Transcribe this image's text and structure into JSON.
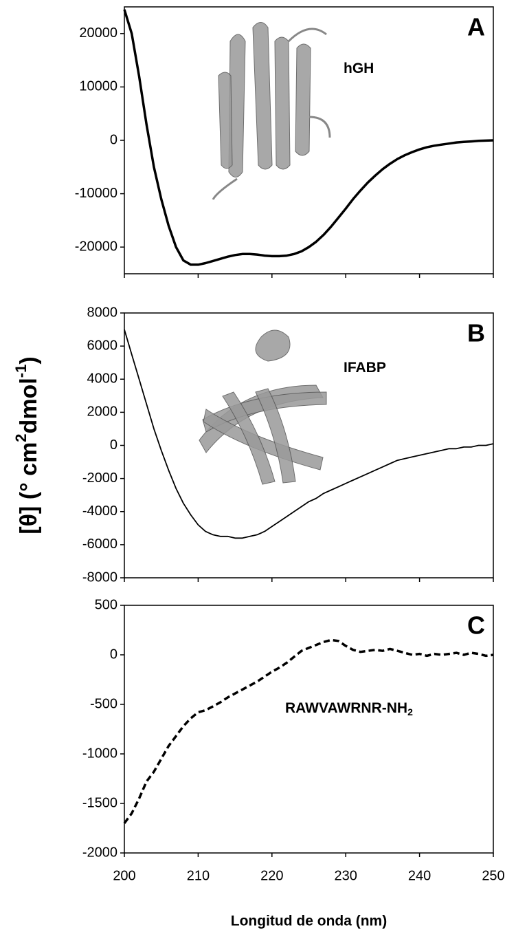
{
  "chart_data": [
    {
      "type": "line",
      "panel": "A",
      "annotation": [
        "hGH"
      ],
      "line_style": "solid",
      "xtick_labels": false,
      "xlim": [
        200,
        250
      ],
      "xticks": [
        200,
        210,
        220,
        230,
        240,
        250
      ],
      "ylim": [
        -25000,
        25000
      ],
      "yticks": [
        -20000,
        -10000,
        0,
        10000,
        20000
      ],
      "x": [
        200,
        201,
        202,
        203,
        204,
        205,
        206,
        207,
        208,
        209,
        210,
        211,
        212,
        213,
        214,
        215,
        216,
        217,
        218,
        219,
        220,
        221,
        222,
        223,
        224,
        225,
        226,
        227,
        228,
        229,
        230,
        231,
        232,
        233,
        234,
        235,
        236,
        237,
        238,
        239,
        240,
        241,
        242,
        243,
        244,
        245,
        246,
        247,
        248,
        249,
        250
      ],
      "series": [
        {
          "color": "#000000",
          "values": [
            24500,
            20000,
            12000,
            3000,
            -5000,
            -11000,
            -16000,
            -20000,
            -22500,
            -23300,
            -23300,
            -23000,
            -22600,
            -22200,
            -21800,
            -21500,
            -21300,
            -21300,
            -21400,
            -21600,
            -21700,
            -21700,
            -21600,
            -21300,
            -20800,
            -20000,
            -19000,
            -17700,
            -16200,
            -14500,
            -12800,
            -11000,
            -9400,
            -7900,
            -6600,
            -5400,
            -4400,
            -3500,
            -2800,
            -2200,
            -1700,
            -1300,
            -1000,
            -800,
            -600,
            -400,
            -300,
            -200,
            -100,
            -50,
            0
          ]
        }
      ]
    },
    {
      "type": "line",
      "panel": "B",
      "annotation": [
        "IFABP"
      ],
      "line_style": "solid",
      "xtick_labels": false,
      "ylabel": [
        "[θ] (° cm",
        "2",
        "dmol",
        "-1",
        ")"
      ],
      "xlim": [
        200,
        250
      ],
      "xticks": [
        200,
        210,
        220,
        230,
        240,
        250
      ],
      "ylim": [
        -8000,
        8000
      ],
      "yticks": [
        -8000,
        -6000,
        -4000,
        -2000,
        0,
        2000,
        4000,
        6000,
        8000
      ],
      "x": [
        200,
        201,
        202,
        203,
        204,
        205,
        206,
        207,
        208,
        209,
        210,
        211,
        212,
        213,
        214,
        215,
        216,
        217,
        218,
        219,
        220,
        221,
        222,
        223,
        224,
        225,
        226,
        227,
        228,
        229,
        230,
        231,
        232,
        233,
        234,
        235,
        236,
        237,
        238,
        239,
        240,
        241,
        242,
        243,
        244,
        245,
        246,
        247,
        248,
        249,
        250
      ],
      "series": [
        {
          "color": "#000000",
          "values": [
            7000,
            5500,
            4000,
            2500,
            1000,
            -300,
            -1500,
            -2600,
            -3500,
            -4200,
            -4800,
            -5200,
            -5400,
            -5500,
            -5500,
            -5600,
            -5600,
            -5500,
            -5400,
            -5200,
            -4900,
            -4600,
            -4300,
            -4000,
            -3700,
            -3400,
            -3200,
            -2900,
            -2700,
            -2500,
            -2300,
            -2100,
            -1900,
            -1700,
            -1500,
            -1300,
            -1100,
            -900,
            -800,
            -700,
            -600,
            -500,
            -400,
            -300,
            -200,
            -200,
            -100,
            -100,
            0,
            0,
            100
          ]
        }
      ]
    },
    {
      "type": "line",
      "panel": "C",
      "annotation": [
        "RAWVAWRNR-NH",
        "2"
      ],
      "line_style": "dashed",
      "xtick_labels": true,
      "xlabel": "Longitud de onda (nm)",
      "xlim": [
        200,
        250
      ],
      "xticks": [
        200,
        210,
        220,
        230,
        240,
        250
      ],
      "ylim": [
        -2000,
        500
      ],
      "yticks": [
        -2000,
        -1500,
        -1000,
        -500,
        0,
        500
      ],
      "x": [
        200,
        201,
        202,
        203,
        204,
        205,
        206,
        207,
        208,
        209,
        210,
        211,
        212,
        213,
        214,
        215,
        216,
        217,
        218,
        219,
        220,
        221,
        222,
        223,
        224,
        225,
        226,
        227,
        228,
        229,
        230,
        231,
        232,
        233,
        234,
        235,
        236,
        237,
        238,
        239,
        240,
        241,
        242,
        243,
        244,
        245,
        246,
        247,
        248,
        249,
        250
      ],
      "series": [
        {
          "color": "#000000",
          "values": [
            -1700,
            -1600,
            -1450,
            -1280,
            -1180,
            -1050,
            -920,
            -820,
            -720,
            -640,
            -580,
            -560,
            -520,
            -480,
            -430,
            -390,
            -350,
            -310,
            -270,
            -220,
            -170,
            -130,
            -80,
            -20,
            40,
            70,
            100,
            130,
            150,
            140,
            90,
            50,
            30,
            40,
            50,
            40,
            60,
            40,
            20,
            0,
            10,
            -10,
            10,
            0,
            10,
            20,
            0,
            20,
            10,
            -10,
            0
          ]
        }
      ]
    }
  ]
}
